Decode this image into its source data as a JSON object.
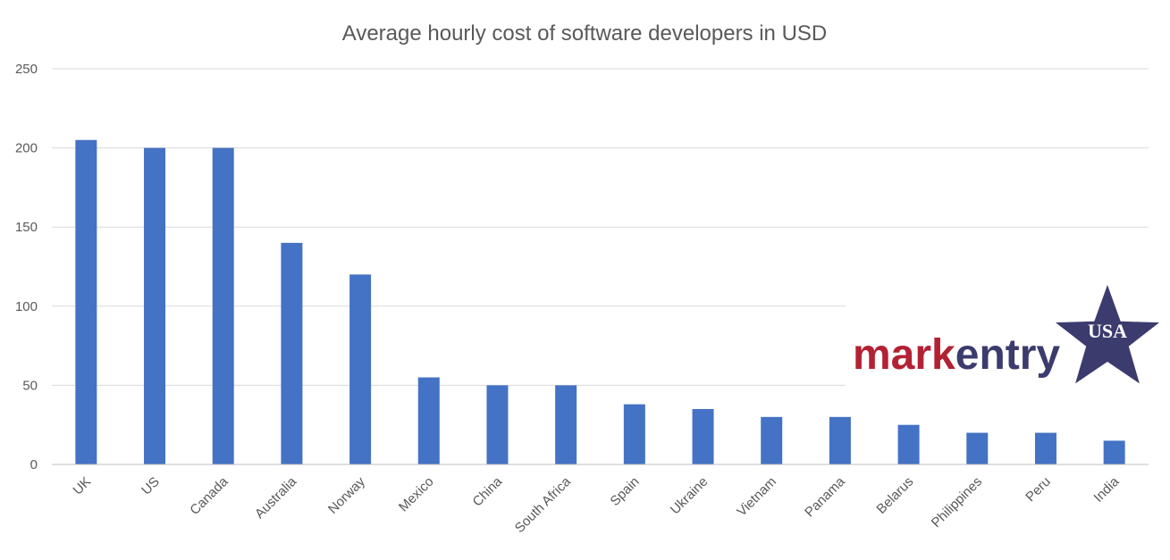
{
  "chart_data": {
    "type": "bar",
    "title": "Average hourly cost of software developers in USD",
    "xlabel": "",
    "ylabel": "",
    "categories": [
      "UK",
      "US",
      "Canada",
      "Australia",
      "Norway",
      "Mexico",
      "China",
      "South Africa",
      "Spain",
      "Ukraine",
      "Vietnam",
      "Panama",
      "Belarus",
      "Philippines",
      "Peru",
      "India"
    ],
    "values": [
      205,
      200,
      200,
      140,
      120,
      55,
      50,
      50,
      38,
      35,
      30,
      30,
      25,
      20,
      20,
      15
    ],
    "ylim": [
      0,
      250
    ],
    "yticks": [
      0,
      50,
      100,
      150,
      200,
      250
    ],
    "grid": true,
    "bar_color": "#4472c4"
  },
  "logo": {
    "part1": "mark",
    "part2": "entry",
    "badge": "USA",
    "color1": "#b22234",
    "color2": "#3c3b6e",
    "star_color": "#3c3b6e"
  }
}
